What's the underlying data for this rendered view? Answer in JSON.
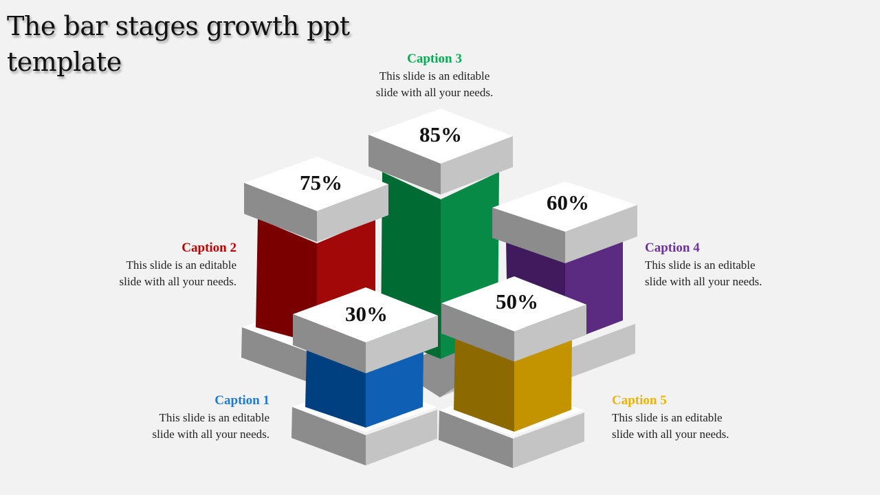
{
  "title": "The bar stages growth ppt\ntemplate",
  "stages": [
    {
      "id": 1,
      "caption": "Caption 1",
      "text": "This slide is an editable\nslide with all your needs.",
      "value": "30%",
      "color": "#1f7ad1"
    },
    {
      "id": 2,
      "caption": "Caption 2",
      "text": "This slide is an editable\nslide with all your needs.",
      "value": "75%",
      "color": "#c00000"
    },
    {
      "id": 3,
      "caption": "Caption 3",
      "text": "This slide is an editable\nslide with all your needs.",
      "value": "85%",
      "color": "#00a550"
    },
    {
      "id": 4,
      "caption": "Caption 4",
      "text": "This slide is an editable\nslide with all your needs.",
      "value": "60%",
      "color": "#7030a0"
    },
    {
      "id": 5,
      "caption": "Caption 5",
      "text": "This slide is an editable\nslide with all your needs.",
      "value": "50%",
      "color": "#e6b000"
    }
  ]
}
